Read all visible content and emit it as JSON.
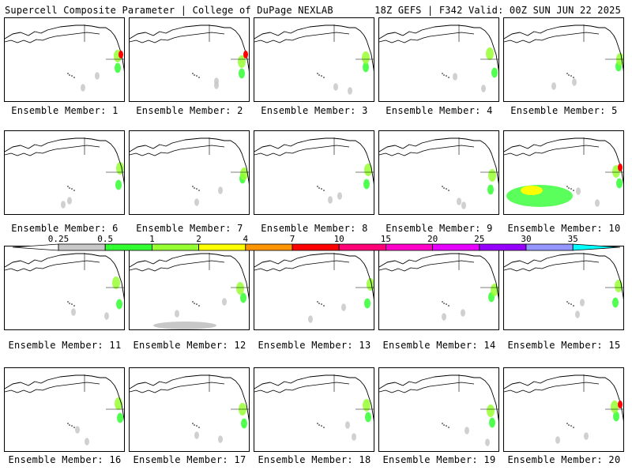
{
  "header": {
    "left_title": "Supercell Composite Parameter | College of DuPage NEXLAB",
    "right_title": "18Z GEFS | F342 Valid: 00Z SUN JUN 22 2025"
  },
  "colorbar": {
    "labels": [
      "0.25",
      "0.5",
      "1",
      "2",
      "4",
      "7",
      "10",
      "15",
      "20",
      "25",
      "30",
      "35"
    ],
    "colors": [
      "#ffffff",
      "#c8c8c8",
      "#32ff32",
      "#96ff32",
      "#ffff00",
      "#ff9600",
      "#ff0000",
      "#ff0078",
      "#ff00c8",
      "#e600ff",
      "#9600ff",
      "#9696ff",
      "#00ffff"
    ]
  },
  "panels": [
    {
      "label": "Ensemble Member: 1"
    },
    {
      "label": "Ensemble Member: 2"
    },
    {
      "label": "Ensemble Member: 3"
    },
    {
      "label": "Ensemble Member: 4"
    },
    {
      "label": "Ensemble Member: 5"
    },
    {
      "label": "Ensemble Member: 6"
    },
    {
      "label": "Ensemble Member: 7"
    },
    {
      "label": "Ensemble Member: 8"
    },
    {
      "label": "Ensemble Member: 9"
    },
    {
      "label": "Ensemble Member: 10"
    },
    {
      "label": "Ensemble Member: 11"
    },
    {
      "label": "Ensemble Member: 12"
    },
    {
      "label": "Ensemble Member: 13"
    },
    {
      "label": "Ensemble Member: 14"
    },
    {
      "label": "Ensemble Member: 15"
    },
    {
      "label": "Ensemble Member: 16"
    },
    {
      "label": "Ensemble Member: 17"
    },
    {
      "label": "Ensemble Member: 18"
    },
    {
      "label": "Ensemble Member: 19"
    },
    {
      "label": "Ensemble Member: 20"
    }
  ]
}
